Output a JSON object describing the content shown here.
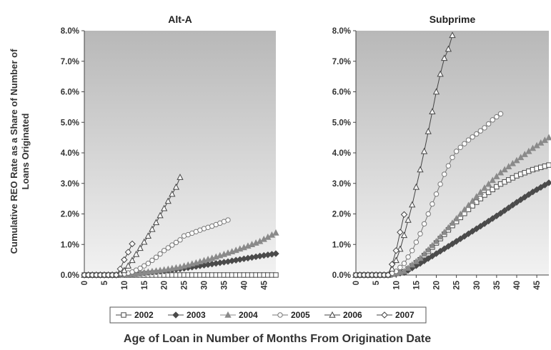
{
  "figure": {
    "ylabel_line1": "Cumulative REO Rate as a Share of Number of",
    "ylabel_line2": "Loans Originated",
    "xlabel": "Age of Loan in Number of Months From Origination Date"
  },
  "colors": {
    "plot_bg_top": "#b8b8b8",
    "plot_bg_bottom": "#f2f2f2",
    "series_2002": "#4a4a4a",
    "series_2003": "#4a4a4a",
    "series_2004": "#8a8a8a",
    "series_2005": "#777777",
    "series_2006": "#444444",
    "series_2007": "#444444"
  },
  "legend": [
    {
      "name": "2002",
      "marker": "square"
    },
    {
      "name": "2003",
      "marker": "diamond-filled"
    },
    {
      "name": "2004",
      "marker": "triangle-filled"
    },
    {
      "name": "2005",
      "marker": "circle"
    },
    {
      "name": "2006",
      "marker": "triangle"
    },
    {
      "name": "2007",
      "marker": "diamond"
    }
  ],
  "chart_data": [
    {
      "type": "line",
      "title": "Alt-A",
      "xlabel": "Age of Loan in Number of Months From Origination Date",
      "ylabel": "Cumulative REO Rate as a Share of Number of Loans Originated",
      "xlim": [
        0,
        48
      ],
      "ylim": [
        0,
        8
      ],
      "xticks": [
        "0",
        "5",
        "10",
        "15",
        "20",
        "25",
        "30",
        "35",
        "40",
        "45"
      ],
      "yticks": [
        "0.0%",
        "1.0%",
        "2.0%",
        "3.0%",
        "4.0%",
        "5.0%",
        "6.0%",
        "7.0%",
        "8.0%"
      ],
      "grid": false,
      "legend_position": "bottom",
      "series": [
        {
          "name": "2002",
          "x": [
            0,
            48
          ],
          "y": [
            0,
            0
          ]
        },
        {
          "name": "2003",
          "x": [
            0,
            8,
            12,
            16,
            20,
            24,
            28,
            32,
            36,
            40,
            44,
            48
          ],
          "y": [
            0,
            0,
            0.03,
            0.08,
            0.13,
            0.2,
            0.28,
            0.36,
            0.44,
            0.53,
            0.62,
            0.7
          ]
        },
        {
          "name": "2004",
          "x": [
            0,
            8,
            12,
            16,
            20,
            24,
            28,
            32,
            36,
            40,
            44,
            48
          ],
          "y": [
            0,
            0,
            0.03,
            0.1,
            0.17,
            0.26,
            0.4,
            0.55,
            0.72,
            0.9,
            1.1,
            1.38
          ]
        },
        {
          "name": "2005",
          "x": [
            0,
            8,
            10,
            12,
            14,
            16,
            18,
            20,
            22,
            24,
            25,
            26,
            28,
            30,
            32,
            34,
            36
          ],
          "y": [
            0,
            0,
            0.03,
            0.1,
            0.22,
            0.38,
            0.58,
            0.8,
            0.98,
            1.15,
            1.28,
            1.32,
            1.42,
            1.52,
            1.6,
            1.7,
            1.8
          ]
        },
        {
          "name": "2006",
          "x": [
            0,
            8,
            9,
            10,
            11,
            12,
            13,
            14,
            15,
            16,
            17,
            18,
            19,
            20,
            21,
            22,
            23,
            24
          ],
          "y": [
            0,
            0,
            0.05,
            0.15,
            0.3,
            0.48,
            0.68,
            0.88,
            1.08,
            1.28,
            1.5,
            1.72,
            1.95,
            2.18,
            2.42,
            2.65,
            2.88,
            3.2
          ]
        },
        {
          "name": "2007",
          "x": [
            0,
            8,
            9,
            10,
            11,
            12
          ],
          "y": [
            0,
            0,
            0.2,
            0.5,
            0.75,
            1.02
          ]
        }
      ]
    },
    {
      "type": "line",
      "title": "Subprime",
      "xlabel": "Age of Loan in Number of Months From Origination Date",
      "ylabel": "",
      "xlim": [
        0,
        48
      ],
      "ylim": [
        0,
        8
      ],
      "xticks": [
        "0",
        "5",
        "10",
        "15",
        "20",
        "25",
        "30",
        "35",
        "40",
        "45"
      ],
      "yticks": [
        "0.0%",
        "1.0%",
        "2.0%",
        "3.0%",
        "4.0%",
        "5.0%",
        "6.0%",
        "7.0%",
        "8.0%"
      ],
      "grid": false,
      "legend_position": "bottom",
      "series": [
        {
          "name": "2002",
          "x": [
            0,
            8,
            12,
            16,
            20,
            24,
            28,
            32,
            36,
            40,
            44,
            48
          ],
          "y": [
            0,
            0,
            0.1,
            0.5,
            1.05,
            1.62,
            2.15,
            2.62,
            2.98,
            3.25,
            3.45,
            3.6
          ]
        },
        {
          "name": "2003",
          "x": [
            0,
            8,
            12,
            16,
            20,
            24,
            28,
            32,
            36,
            40,
            44,
            48
          ],
          "y": [
            0,
            0,
            0.08,
            0.38,
            0.7,
            1.02,
            1.35,
            1.68,
            2.02,
            2.38,
            2.72,
            3.02
          ]
        },
        {
          "name": "2004",
          "x": [
            0,
            8,
            12,
            16,
            20,
            24,
            28,
            32,
            36,
            40,
            44,
            48
          ],
          "y": [
            0,
            0,
            0.12,
            0.55,
            1.1,
            1.7,
            2.28,
            2.85,
            3.35,
            3.75,
            4.15,
            4.5
          ]
        },
        {
          "name": "2005",
          "x": [
            0,
            8,
            10,
            12,
            14,
            16,
            18,
            20,
            22,
            24,
            25,
            26,
            28,
            30,
            32,
            34,
            36
          ],
          "y": [
            0,
            0,
            0.12,
            0.38,
            0.8,
            1.35,
            2.0,
            2.65,
            3.3,
            3.85,
            4.05,
            4.18,
            4.42,
            4.62,
            4.82,
            5.08,
            5.28
          ]
        },
        {
          "name": "2006",
          "x": [
            0,
            8,
            9,
            10,
            11,
            12,
            13,
            14,
            15,
            16,
            17,
            18,
            19,
            20,
            21,
            22,
            23,
            24
          ],
          "y": [
            0,
            0,
            0.2,
            0.48,
            0.85,
            1.3,
            1.8,
            2.3,
            2.88,
            3.45,
            4.05,
            4.7,
            5.35,
            6.0,
            6.58,
            7.1,
            7.4,
            7.85
          ]
        },
        {
          "name": "2007",
          "x": [
            0,
            8,
            9,
            10,
            11,
            12
          ],
          "y": [
            0,
            0,
            0.35,
            0.8,
            1.4,
            1.98
          ]
        }
      ]
    }
  ]
}
